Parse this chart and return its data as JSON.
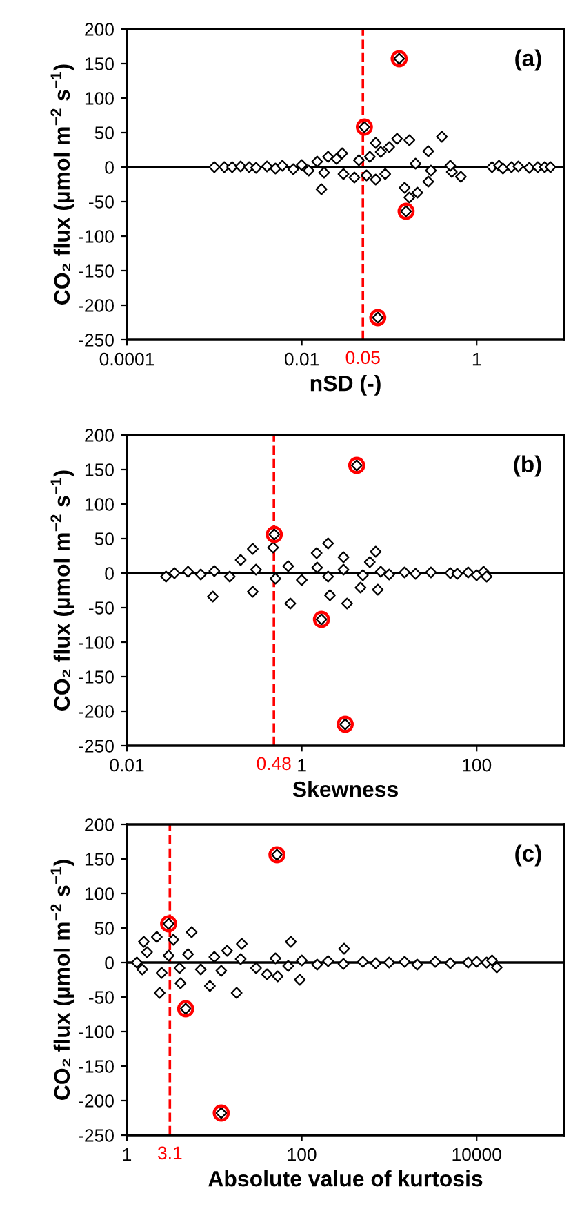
{
  "chart_data": [
    {
      "type": "scatter",
      "xlabel": "nSD (-)",
      "ylabel": "CO₂ flux (µmol m$^{−2}$ s$^{−1}$)",
      "annotations": [
        "(a)"
      ],
      "log": "x",
      "xlim": [
        0.0001,
        10
      ],
      "xticks": [
        0.0001,
        0.01,
        1
      ],
      "ylim": [
        -250,
        200
      ],
      "yticks": [
        -250,
        -200,
        -150,
        -100,
        -50,
        0,
        50,
        100,
        150,
        200
      ],
      "grid": false,
      "legend": false,
      "ref_lines": [
        {
          "axis": "x",
          "value": 0.05,
          "label": "0.05",
          "color": "#ff0000",
          "line_style": "dashed"
        },
        {
          "axis": "y",
          "value": 0,
          "label": null,
          "color": "#000000",
          "line_style": "solid"
        }
      ],
      "series": [
        {
          "color": "#000000",
          "marker": "diamond",
          "x": [
            0.001,
            0.0013,
            0.0016,
            0.002,
            0.0025,
            0.003,
            0.004,
            0.005,
            0.006,
            0.008,
            0.01,
            0.012,
            0.015,
            0.018,
            0.02,
            0.0168,
            0.025,
            0.03,
            0.029,
            0.04,
            0.045,
            0.055,
            0.06,
            0.07,
            0.08,
            0.09,
            0.123,
            0.17,
            0.15,
            0.17,
            0.21,
            0.28,
            0.28,
            0.4,
            0.52,
            0.66,
            0.2,
            0.3,
            0.5,
            0.07,
            0.1,
            1.5,
            1.8,
            2,
            2.5,
            3,
            4,
            5,
            6,
            7,
            0.13,
            0.052,
            0.156,
            0.074
          ],
          "values": [
            0,
            0,
            0,
            1,
            0,
            -1,
            1,
            -2,
            2,
            -3,
            3,
            -5,
            8,
            -8,
            15,
            -32,
            12,
            -10,
            20,
            -15,
            10,
            -12,
            15,
            -18,
            22,
            -10,
            41,
            39,
            -30,
            -44,
            -37,
            23,
            -21,
            44,
            -7,
            -14,
            5,
            -5,
            2,
            35,
            29,
            0,
            2,
            -2,
            0,
            1,
            -1,
            0,
            0,
            0,
            157,
            58,
            -64,
            -218
          ]
        },
        {
          "color": "#ff0000",
          "marker": "circle",
          "x": [
            0.13,
            0.052,
            0.156,
            0.074
          ],
          "values": [
            157,
            58,
            -64,
            -218
          ]
        }
      ]
    },
    {
      "type": "scatter",
      "xlabel": "Skewness",
      "ylabel": "CO₂ flux (µmol m$^{−2}$ s$^{−1}$)",
      "annotations": [
        "(b)"
      ],
      "log": "x",
      "xlim": [
        0.01,
        1000
      ],
      "xticks": [
        0.01,
        1,
        100
      ],
      "ylim": [
        -250,
        200
      ],
      "yticks": [
        -250,
        -200,
        -150,
        -100,
        -50,
        0,
        50,
        100,
        150,
        200
      ],
      "grid": false,
      "legend": false,
      "ref_lines": [
        {
          "axis": "x",
          "value": 0.48,
          "label": "0.48",
          "color": "#ff0000",
          "line_style": "dashed"
        },
        {
          "axis": "y",
          "value": 0,
          "label": null,
          "color": "#000000",
          "line_style": "solid"
        }
      ],
      "series": [
        {
          "color": "#000000",
          "marker": "diamond",
          "x": [
            0.028,
            0.035,
            0.05,
            0.07,
            0.1,
            0.15,
            0.096,
            0.275,
            0.275,
            0.2,
            0.47,
            0.74,
            1.48,
            2.0,
            2.1,
            3.3,
            3.0,
            4.7,
            7.4,
            7.0,
            6,
            0.3,
            0.5,
            0.7,
            1,
            1.5,
            2,
            3,
            5,
            8,
            10,
            15,
            20,
            30,
            50,
            60,
            80,
            100,
            120,
            130,
            4.25,
            0.485,
            1.68,
            3.14
          ],
          "values": [
            -5,
            0,
            2,
            -2,
            3,
            -5,
            -34,
            35,
            -27,
            19,
            37,
            -44,
            29,
            43,
            -32,
            -44,
            23,
            -21,
            -24,
            31,
            16,
            5,
            -8,
            10,
            -10,
            8,
            -5,
            5,
            -3,
            2,
            -2,
            1,
            -1,
            1,
            0,
            -1,
            1,
            -3,
            2,
            -5,
            156,
            56,
            -67,
            -219
          ]
        },
        {
          "color": "#ff0000",
          "marker": "circle",
          "x": [
            4.25,
            0.485,
            1.68,
            3.14
          ],
          "values": [
            156,
            56,
            -67,
            -219
          ]
        }
      ]
    },
    {
      "type": "scatter",
      "xlabel": "Absolute value of kurtosis",
      "ylabel": "CO₂ flux (µmol m$^{−2}$ s$^{−1}$)",
      "annotations": [
        "(c)"
      ],
      "log": "x",
      "xlim": [
        1,
        100000
      ],
      "xticks": [
        1,
        100,
        10000
      ],
      "ylim": [
        -250,
        200
      ],
      "yticks": [
        -250,
        -200,
        -150,
        -100,
        -50,
        0,
        50,
        100,
        150,
        200
      ],
      "grid": false,
      "legend": false,
      "ref_lines": [
        {
          "axis": "x",
          "value": 3.1,
          "label": "3.1",
          "color": "#ff0000",
          "line_style": "dashed"
        },
        {
          "axis": "y",
          "value": 0,
          "label": null,
          "color": "#000000",
          "line_style": "solid"
        }
      ],
      "series": [
        {
          "color": "#000000",
          "marker": "diamond",
          "x": [
            1.3,
            1.5,
            1.7,
            1.56,
            2.37,
            2.2,
            3.4,
            4.1,
            5.5,
            8.9,
            14,
            18,
            20.6,
            40,
            75,
            95,
            305,
            53,
            2.5,
            3,
            4,
            5,
            7,
            10,
            12,
            20,
            30,
            50,
            70,
            100,
            150,
            200,
            300,
            500,
            700,
            1000,
            1500,
            2090,
            3360,
            5000,
            8000,
            10000,
            13000,
            15000,
            17000,
            52,
            3.0,
            4.7,
            12
          ],
          "values": [
            0,
            -10,
            15,
            30,
            -44,
            37,
            33,
            -30,
            44,
            -34,
            17,
            -44,
            27,
            -17,
            30,
            -25,
            20,
            -20,
            -15,
            10,
            -8,
            12,
            -10,
            8,
            -12,
            5,
            -8,
            6,
            -5,
            3,
            -3,
            2,
            -2,
            1,
            -1,
            0,
            1,
            -3,
            1,
            -1,
            0,
            1,
            0,
            3,
            -7,
            156,
            56,
            -67,
            -218
          ]
        },
        {
          "color": "#ff0000",
          "marker": "circle",
          "x": [
            52,
            3.0,
            4.7,
            12
          ],
          "values": [
            156,
            56,
            -67,
            -218
          ]
        }
      ]
    }
  ]
}
